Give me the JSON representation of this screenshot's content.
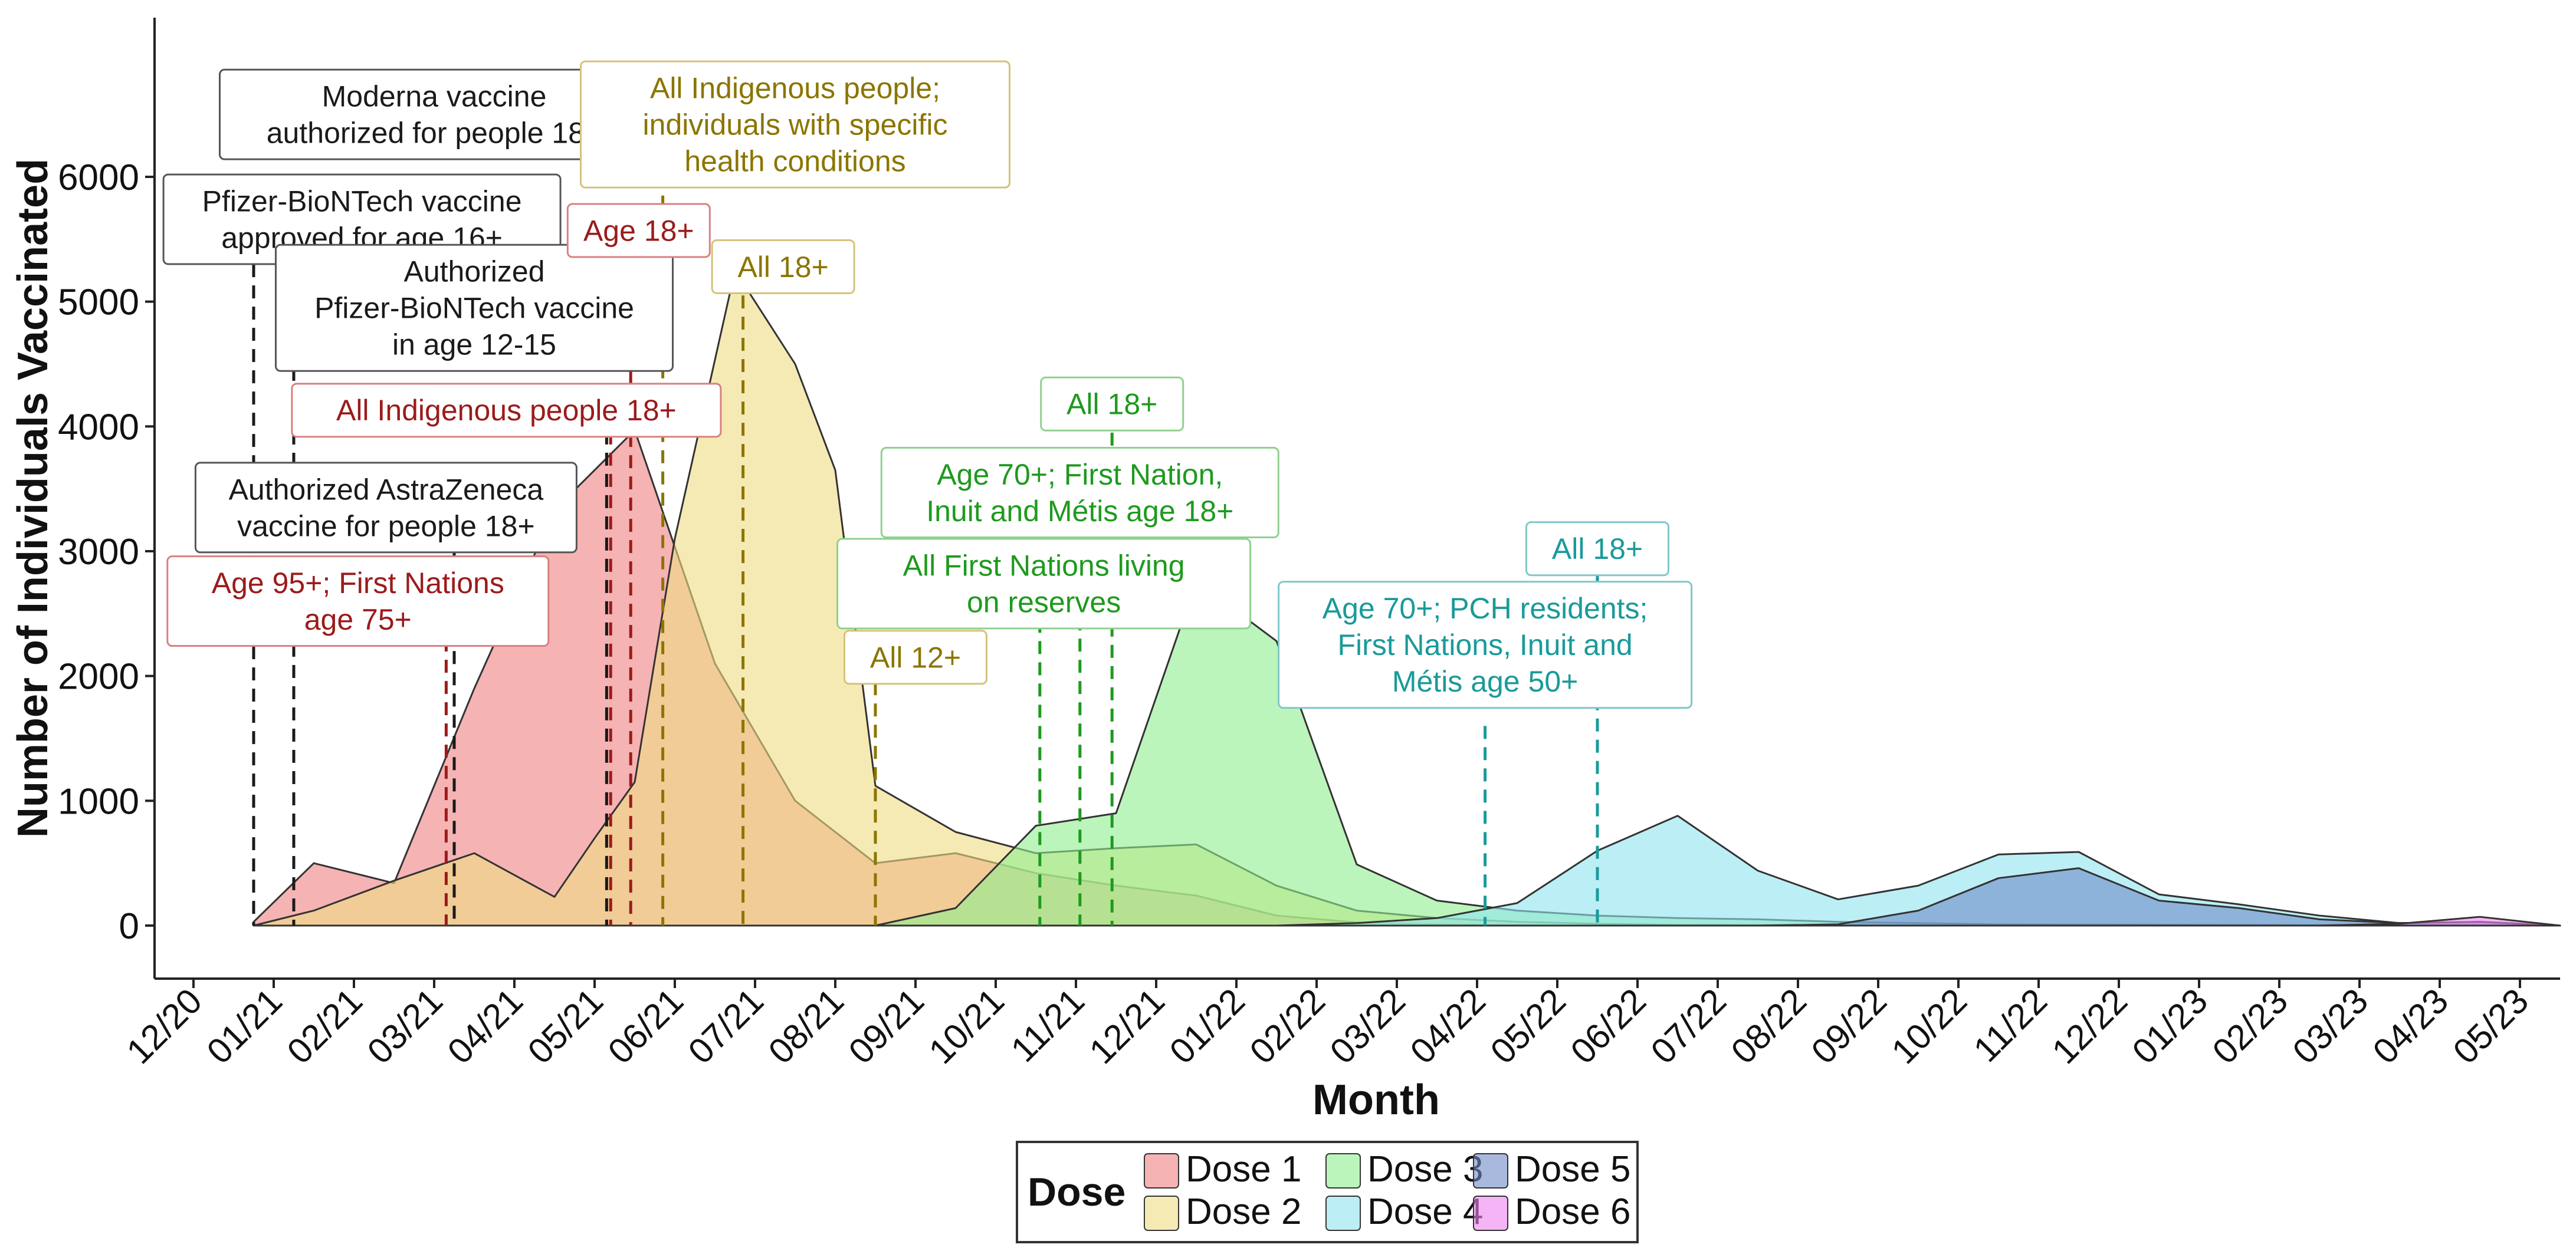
{
  "chart_data": {
    "type": "area",
    "title": "",
    "xlabel": "Month",
    "ylabel": "Number of Individuals Vaccinated",
    "x_tick_labels": [
      "12/20",
      "01/21",
      "02/21",
      "03/21",
      "04/21",
      "05/21",
      "06/21",
      "07/21",
      "08/21",
      "09/21",
      "10/21",
      "11/21",
      "12/21",
      "01/22",
      "02/22",
      "03/22",
      "04/22",
      "05/22",
      "06/22",
      "07/22",
      "08/22",
      "09/22",
      "10/22",
      "11/22",
      "12/22",
      "01/23",
      "02/23",
      "03/23",
      "04/23",
      "05/23"
    ],
    "y_ticks": [
      0,
      1000,
      2000,
      3000,
      4000,
      5000,
      6000
    ],
    "xlim": [
      -0.1,
      29.6
    ],
    "ylim": [
      -400,
      7000
    ],
    "grid": false,
    "series": [
      {
        "name": "Dose 1",
        "color": "#F08080",
        "points": [
          [
            0.75,
            30
          ],
          [
            1.5,
            500
          ],
          [
            2.5,
            340
          ],
          [
            3.5,
            1900
          ],
          [
            4.5,
            3330
          ],
          [
            5.5,
            3970
          ],
          [
            6.5,
            2100
          ],
          [
            7.5,
            1000
          ],
          [
            8.5,
            500
          ],
          [
            9.5,
            580
          ],
          [
            10.5,
            420
          ],
          [
            11.5,
            320
          ],
          [
            12.5,
            240
          ],
          [
            13.5,
            80
          ],
          [
            14.5,
            25
          ],
          [
            15.5,
            10
          ],
          [
            16.5,
            5
          ],
          [
            17.5,
            0
          ],
          [
            29.5,
            0
          ]
        ]
      },
      {
        "name": "Dose 2",
        "color": "#F0DC82",
        "points": [
          [
            0.75,
            0
          ],
          [
            1.5,
            120
          ],
          [
            2.5,
            360
          ],
          [
            3.5,
            580
          ],
          [
            4.5,
            230
          ],
          [
            5.0,
            700
          ],
          [
            5.5,
            1150
          ],
          [
            6.0,
            3100
          ],
          [
            6.75,
            5250
          ],
          [
            7.5,
            4500
          ],
          [
            8.0,
            3650
          ],
          [
            8.5,
            1120
          ],
          [
            9.5,
            750
          ],
          [
            10.5,
            580
          ],
          [
            11.5,
            620
          ],
          [
            12.5,
            650
          ],
          [
            13.5,
            320
          ],
          [
            14.5,
            120
          ],
          [
            15.5,
            60
          ],
          [
            16.5,
            30
          ],
          [
            17.5,
            15
          ],
          [
            18.5,
            5
          ],
          [
            29.5,
            0
          ]
        ]
      },
      {
        "name": "Dose 3",
        "color": "#90EE90",
        "points": [
          [
            8.5,
            0
          ],
          [
            9.5,
            140
          ],
          [
            10.5,
            800
          ],
          [
            11.5,
            900
          ],
          [
            12.5,
            2760
          ],
          [
            13.5,
            2280
          ],
          [
            14.5,
            490
          ],
          [
            15.5,
            200
          ],
          [
            16.5,
            120
          ],
          [
            17.5,
            80
          ],
          [
            18.5,
            60
          ],
          [
            19.5,
            50
          ],
          [
            20.5,
            30
          ],
          [
            21.5,
            20
          ],
          [
            22.5,
            10
          ],
          [
            29.5,
            0
          ]
        ]
      },
      {
        "name": "Dose 4",
        "color": "#8EE5EE",
        "points": [
          [
            12.5,
            0
          ],
          [
            13.5,
            0
          ],
          [
            14.5,
            20
          ],
          [
            15.5,
            60
          ],
          [
            16.5,
            180
          ],
          [
            17.5,
            600
          ],
          [
            18.5,
            880
          ],
          [
            19.5,
            440
          ],
          [
            20.5,
            210
          ],
          [
            21.5,
            320
          ],
          [
            22.5,
            570
          ],
          [
            23.5,
            590
          ],
          [
            24.5,
            250
          ],
          [
            25.5,
            170
          ],
          [
            26.5,
            80
          ],
          [
            27.5,
            20
          ],
          [
            28.5,
            30
          ],
          [
            29.5,
            0
          ]
        ]
      },
      {
        "name": "Dose 5",
        "color": "#6F8BC8",
        "points": [
          [
            17.5,
            0
          ],
          [
            19.5,
            0
          ],
          [
            20.5,
            10
          ],
          [
            21.5,
            120
          ],
          [
            22.5,
            380
          ],
          [
            23.5,
            460
          ],
          [
            24.5,
            200
          ],
          [
            25.5,
            140
          ],
          [
            26.5,
            50
          ],
          [
            27.5,
            20
          ],
          [
            28.5,
            30
          ],
          [
            29.5,
            0
          ]
        ]
      },
      {
        "name": "Dose 6",
        "color": "#EE82EE",
        "points": [
          [
            26.5,
            0
          ],
          [
            27.5,
            15
          ],
          [
            28.5,
            70
          ],
          [
            29.5,
            0
          ]
        ]
      }
    ],
    "annotations": [
      {
        "x": 0.75,
        "y": 0,
        "color": "#1a1a1a"
      },
      {
        "x": 1.25,
        "y": 0,
        "color": "#1a1a1a"
      },
      {
        "x": 3.25,
        "y": 0,
        "color": "#1a1a1a"
      },
      {
        "x": 3.15,
        "y": 0,
        "color": "#9B1B1B"
      },
      {
        "x": 5.15,
        "y": 0,
        "color": "#1a1a1a"
      },
      {
        "x": 5.2,
        "y": 0,
        "color": "#9B1B1B"
      },
      {
        "x": 5.45,
        "y": 0,
        "color": "#9B1B1B"
      },
      {
        "x": 5.85,
        "y": 0,
        "color": "#8B7500"
      },
      {
        "x": 6.85,
        "y": 0,
        "color": "#8B7500"
      },
      {
        "x": 8.5,
        "y": 0,
        "color": "#8B7500"
      },
      {
        "x": 10.55,
        "y": 0,
        "color": "#1E9A1E"
      },
      {
        "x": 11.05,
        "y": 0,
        "color": "#1E9A1E"
      },
      {
        "x": 11.45,
        "y": 0,
        "color": "#1E9A1E"
      },
      {
        "x": 16.1,
        "y": 0,
        "color": "#1A9A9A"
      },
      {
        "x": 17.5,
        "y": 0,
        "color": "#1A9A9A"
      }
    ],
    "labels": [
      {
        "x": 3.0,
        "y": 6500,
        "anchor_y": 6000,
        "line_x": 1.25,
        "color": "#1a1a1a",
        "border": "#555555",
        "lines": [
          "Moderna vaccine",
          "authorized for people 18+"
        ]
      },
      {
        "x": 2.1,
        "y": 5660,
        "anchor_y": 5300,
        "line_x": 0.75,
        "color": "#1a1a1a",
        "border": "#555555",
        "lines": [
          "Pfizer-BioNTech vaccine",
          "approved for age 16+"
        ]
      },
      {
        "x": 3.5,
        "y": 4950,
        "anchor_y": 4300,
        "line_x": 5.15,
        "color": "#1a1a1a",
        "border": "#555555",
        "lines": [
          "Authorized",
          "Pfizer-BioNTech vaccine",
          "in age 12-15"
        ]
      },
      {
        "x": 2.4,
        "y": 3350,
        "anchor_y": 3050,
        "line_x": 3.25,
        "color": "#1a1a1a",
        "border": "#555555",
        "lines": [
          "Authorized AstraZeneca",
          "vaccine for people 18+"
        ]
      },
      {
        "x": 2.05,
        "y": 2600,
        "anchor_y": 2300,
        "line_x": 3.15,
        "color": "#9B1B1B",
        "border": "#D98080",
        "lines": [
          "Age 95+; First Nations",
          "age 75+"
        ]
      },
      {
        "x": 3.9,
        "y": 4130,
        "anchor_y": 4130,
        "line_x": 5.2,
        "color": "#9B1B1B",
        "border": "#D98080",
        "lines": [
          "All Indigenous people 18+"
        ]
      },
      {
        "x": 5.55,
        "y": 5570,
        "anchor_y": 5300,
        "line_x": 5.45,
        "color": "#9B1B1B",
        "border": "#D98080",
        "lines": [
          "Age 18+"
        ]
      },
      {
        "x": 7.5,
        "y": 6420,
        "anchor_y": 5850,
        "line_x": 5.85,
        "color": "#8B7500",
        "border": "#D4C27A",
        "lines": [
          "All Indigenous people;",
          "individuals with specific",
          "health conditions"
        ]
      },
      {
        "x": 7.35,
        "y": 5280,
        "anchor_y": 5050,
        "line_x": 6.85,
        "color": "#8B7500",
        "border": "#D4C27A",
        "lines": [
          "All 18+"
        ]
      },
      {
        "x": 9.0,
        "y": 2150,
        "anchor_y": 1950,
        "line_x": 8.5,
        "color": "#8B7500",
        "border": "#D4C27A",
        "lines": [
          "All 12+"
        ]
      },
      {
        "x": 11.45,
        "y": 4180,
        "anchor_y": 3950,
        "line_x": 11.45,
        "color": "#1E9A1E",
        "border": "#8FD08F",
        "lines": [
          "All 18+"
        ]
      },
      {
        "x": 11.05,
        "y": 3470,
        "anchor_y": 3150,
        "line_x": 11.05,
        "color": "#1E9A1E",
        "border": "#8FD08F",
        "lines": [
          "Age 70+; First Nation,",
          "Inuit and Métis age 18+"
        ]
      },
      {
        "x": 10.6,
        "y": 2740,
        "anchor_y": 2450,
        "line_x": 10.55,
        "color": "#1E9A1E",
        "border": "#8FD08F",
        "lines": [
          "All First Nations living",
          "on reserves"
        ]
      },
      {
        "x": 17.5,
        "y": 3020,
        "anchor_y": 2850,
        "line_x": 17.5,
        "color": "#1A9A9A",
        "border": "#7FC8C8",
        "lines": [
          "All 18+"
        ]
      },
      {
        "x": 16.1,
        "y": 2250,
        "anchor_y": 1600,
        "line_x": 16.1,
        "color": "#1A9A9A",
        "border": "#7FC8C8",
        "lines": [
          "Age 70+; PCH residents;",
          "First Nations, Inuit and",
          "Métis age 50+"
        ]
      }
    ],
    "legend": {
      "title": "Dose",
      "placement": "bottom",
      "entries": [
        "Dose 1",
        "Dose 3",
        "Dose 5",
        "Dose 2",
        "Dose 4",
        "Dose 6"
      ]
    }
  }
}
